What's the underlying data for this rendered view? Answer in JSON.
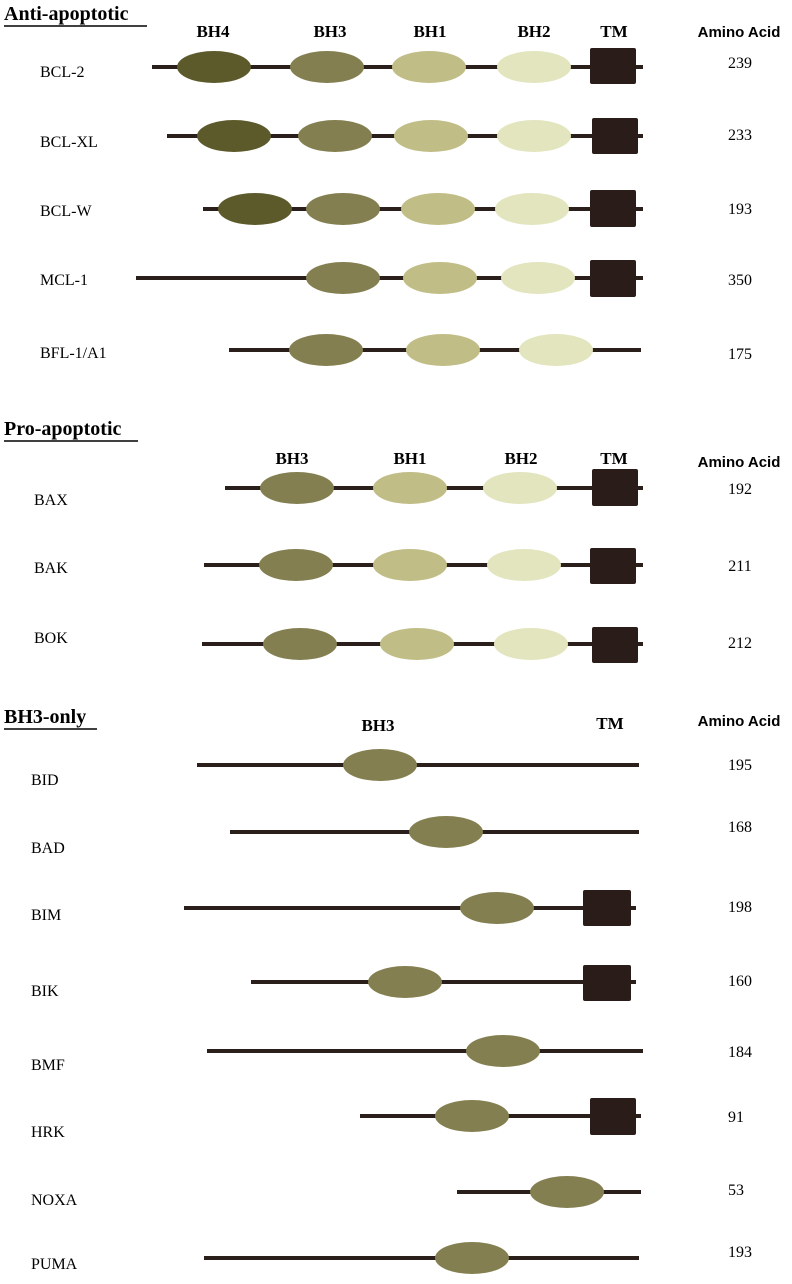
{
  "colors": {
    "line": "#2a1f1a",
    "BH4": "#5c5a2a",
    "BH3": "#837f50",
    "BH1": "#c1bd86",
    "BH2": "#e2e5bd",
    "TM": "#2a1c18"
  },
  "sections": [
    {
      "title": "Anti-apoptotic",
      "domain_headers": [
        {
          "id": "BH4",
          "label": "BH4"
        },
        {
          "id": "BH3",
          "label": "BH3"
        },
        {
          "id": "BH1",
          "label": "BH1"
        },
        {
          "id": "BH2",
          "label": "BH2"
        },
        {
          "id": "TM",
          "label": "TM"
        }
      ],
      "amino_acid_header": "Amino Acid",
      "proteins": [
        {
          "name": "BCL-2",
          "amino_acids": "239",
          "domains": [
            "BH4",
            "BH3",
            "BH1",
            "BH2",
            "TM"
          ]
        },
        {
          "name": "BCL-XL",
          "amino_acids": "233",
          "domains": [
            "BH4",
            "BH3",
            "BH1",
            "BH2",
            "TM"
          ]
        },
        {
          "name": "BCL-W",
          "amino_acids": "193",
          "domains": [
            "BH4",
            "BH3",
            "BH1",
            "BH2",
            "TM"
          ]
        },
        {
          "name": "MCL-1",
          "amino_acids": "350",
          "domains": [
            "BH3",
            "BH1",
            "BH2",
            "TM"
          ]
        },
        {
          "name": "BFL-1/A1",
          "amino_acids": "175",
          "domains": [
            "BH3",
            "BH1",
            "BH2"
          ]
        }
      ]
    },
    {
      "title": "Pro-apoptotic",
      "domain_headers": [
        {
          "id": "BH3",
          "label": "BH3"
        },
        {
          "id": "BH1",
          "label": "BH1"
        },
        {
          "id": "BH2",
          "label": "BH2"
        },
        {
          "id": "TM",
          "label": "TM"
        }
      ],
      "amino_acid_header": "Amino Acid",
      "proteins": [
        {
          "name": "BAX",
          "amino_acids": "192",
          "domains": [
            "BH3",
            "BH1",
            "BH2",
            "TM"
          ]
        },
        {
          "name": "BAK",
          "amino_acids": "211",
          "domains": [
            "BH3",
            "BH1",
            "BH2",
            "TM"
          ]
        },
        {
          "name": "BOK",
          "amino_acids": "212",
          "domains": [
            "BH3",
            "BH1",
            "BH2",
            "TM"
          ]
        }
      ]
    },
    {
      "title": "BH3-only",
      "domain_headers": [
        {
          "id": "BH3",
          "label": "BH3"
        },
        {
          "id": "TM",
          "label": "TM"
        }
      ],
      "amino_acid_header": "Amino Acid",
      "proteins": [
        {
          "name": "BID",
          "amino_acids": "195",
          "domains": [
            "BH3"
          ]
        },
        {
          "name": "BAD",
          "amino_acids": "168",
          "domains": [
            "BH3"
          ]
        },
        {
          "name": "BIM",
          "amino_acids": "198",
          "domains": [
            "BH3",
            "TM"
          ]
        },
        {
          "name": "BIK",
          "amino_acids": "160",
          "domains": [
            "BH3",
            "TM"
          ]
        },
        {
          "name": "BMF",
          "amino_acids": "184",
          "domains": [
            "BH3"
          ]
        },
        {
          "name": "HRK",
          "amino_acids": "91",
          "domains": [
            "BH3",
            "TM"
          ]
        },
        {
          "name": "NOXA",
          "amino_acids": "53",
          "domains": [
            "BH3"
          ]
        },
        {
          "name": "PUMA",
          "amino_acids": "193",
          "domains": [
            "BH3"
          ]
        }
      ]
    }
  ]
}
